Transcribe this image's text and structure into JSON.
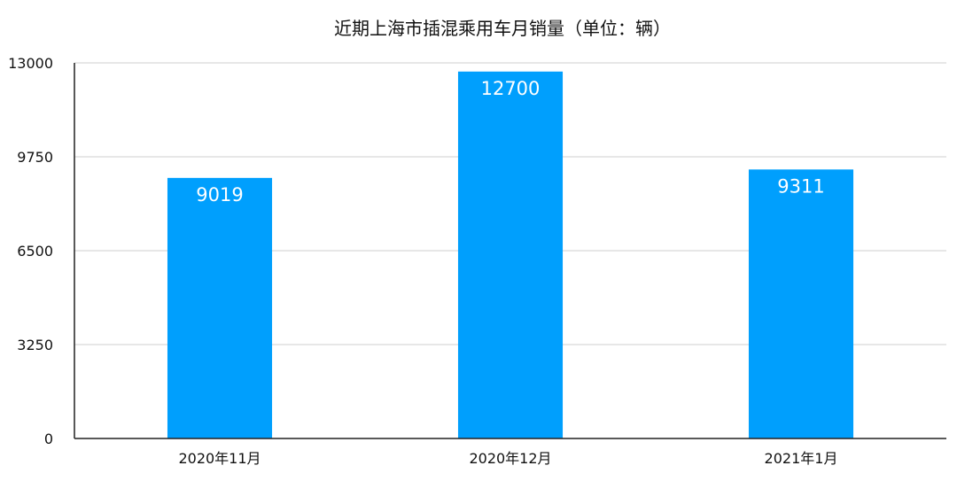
{
  "chart_data": {
    "type": "bar",
    "title": "近期上海市插混乘用车月销量（单位：辆）",
    "categories": [
      "2020年11月",
      "2020年12月",
      "2021年1月"
    ],
    "values": [
      9019,
      12700,
      9311
    ],
    "data_labels": [
      "9019",
      "12700",
      "9311"
    ],
    "ylim": [
      0,
      13000
    ],
    "yticks": [
      0,
      3250,
      6500,
      9750,
      13000
    ],
    "ytick_labels": [
      "0",
      "3250",
      "6500",
      "9750",
      "13000"
    ],
    "xlabel": "",
    "ylabel": "",
    "grid": true,
    "legend": "none",
    "bar_color": "#009ffd"
  }
}
